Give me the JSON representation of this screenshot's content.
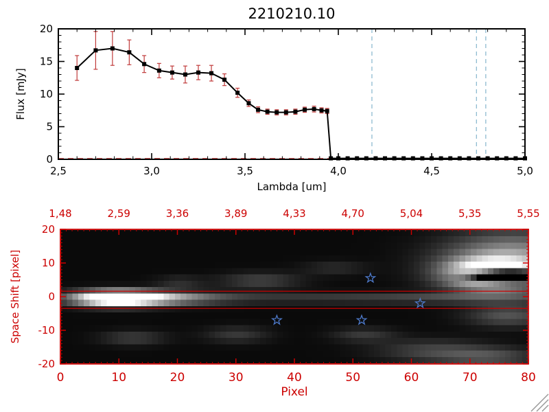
{
  "title": "2210210.10",
  "chart_data": [
    {
      "type": "line",
      "title": "2210210.10",
      "xlabel": "Lambda [um]",
      "ylabel": "Flux [mJy]",
      "xlim": [
        2.5,
        5.0
      ],
      "ylim": [
        0,
        20
      ],
      "xtick_values": [
        2.5,
        3.0,
        3.5,
        4.0,
        4.5,
        5.0
      ],
      "xtick_labels": [
        "2,5",
        "3,0",
        "3,5",
        "4,0",
        "4,5",
        "5,0"
      ],
      "ytick_values": [
        0,
        5,
        10,
        15,
        20
      ],
      "ytick_labels": [
        "0",
        "5",
        "10",
        "15",
        "20"
      ],
      "grid": false,
      "legend": false,
      "line_color": "#000000",
      "marker": "filled-square",
      "error_color": "#c03a3a",
      "series": [
        {
          "name": "spectrum",
          "x": [
            2.6,
            2.7,
            2.79,
            2.88,
            2.96,
            3.04,
            3.11,
            3.18,
            3.25,
            3.32,
            3.39,
            3.46,
            3.52,
            3.57,
            3.62,
            3.67,
            3.72,
            3.77,
            3.82,
            3.87,
            3.91,
            3.94,
            3.96,
            4.0,
            4.05,
            4.1,
            4.15,
            4.2,
            4.25,
            4.3,
            4.35,
            4.4,
            4.45,
            4.5,
            4.55,
            4.6,
            4.65,
            4.7,
            4.75,
            4.8,
            4.85,
            4.9,
            4.95,
            5.0
          ],
          "y": [
            14.0,
            16.7,
            17.0,
            16.4,
            14.6,
            13.6,
            13.3,
            13.0,
            13.3,
            13.2,
            12.2,
            10.2,
            8.6,
            7.6,
            7.3,
            7.2,
            7.2,
            7.3,
            7.6,
            7.7,
            7.5,
            7.4,
            0.15,
            0.15,
            0.15,
            0.15,
            0.15,
            0.15,
            0.15,
            0.15,
            0.15,
            0.15,
            0.15,
            0.15,
            0.15,
            0.15,
            0.15,
            0.15,
            0.15,
            0.15,
            0.15,
            0.15,
            0.15,
            0.15
          ],
          "yerr": [
            1.9,
            2.9,
            2.6,
            1.9,
            1.3,
            1.1,
            1.0,
            1.3,
            1.1,
            1.2,
            0.9,
            0.7,
            0.5,
            0.45,
            0.4,
            0.4,
            0.4,
            0.4,
            0.4,
            0.45,
            0.4,
            0.4,
            0,
            0,
            0,
            0,
            0,
            0,
            0,
            0,
            0,
            0,
            0,
            0,
            0,
            0,
            0,
            0,
            0,
            0,
            0,
            0,
            0,
            0
          ]
        }
      ],
      "vlines": {
        "x": [
          4.18,
          4.74,
          4.79
        ],
        "color": "#79aec8",
        "style": "dashed"
      },
      "hlines": {
        "y": [
          0.1
        ],
        "color": "#cc0000",
        "style": "dashed"
      }
    },
    {
      "type": "heatmap",
      "xlabel": "Pixel",
      "ylabel": "Space Shift [pixel]",
      "xlim": [
        0,
        80
      ],
      "ylim": [
        -20,
        20
      ],
      "xtick_values": [
        0,
        10,
        20,
        30,
        40,
        50,
        60,
        70,
        80
      ],
      "xtick_labels": [
        "0",
        "10",
        "20",
        "30",
        "40",
        "50",
        "60",
        "70",
        "80"
      ],
      "ytick_values": [
        -20,
        -10,
        0,
        10,
        20
      ],
      "ytick_labels": [
        "-20",
        "-10",
        "0",
        "10",
        "20"
      ],
      "top_axis_labels": [
        "1,48",
        "2,59",
        "3,36",
        "3,89",
        "4,33",
        "4,70",
        "5,04",
        "5,35",
        "5,55"
      ],
      "axis_color": "#cc0000",
      "colormap": "grayscale",
      "background_level": 0.04,
      "aperture_lines_y": [
        1.6,
        -3.5
      ],
      "star_color": "#4d79c9",
      "stars": [
        {
          "x": 37,
          "y": -7
        },
        {
          "x": 51.5,
          "y": -7
        },
        {
          "x": 53,
          "y": 5.5
        },
        {
          "x": 61.5,
          "y": -2
        }
      ],
      "blobs": [
        {
          "cx": 9,
          "cy": -0.5,
          "rx": 5,
          "ry": 1.6,
          "a": 1.3
        },
        {
          "cx": 17,
          "cy": -0.5,
          "rx": 7,
          "ry": 1.4,
          "a": 0.5
        },
        {
          "cx": 45,
          "cy": -0.5,
          "rx": 28,
          "ry": 1.2,
          "a": 0.18
        },
        {
          "cx": 70,
          "cy": -0.5,
          "rx": 12,
          "ry": 1.1,
          "a": 0.12
        },
        {
          "cx": 74,
          "cy": 7,
          "rx": 5,
          "ry": 3.0,
          "a": 1.2
        },
        {
          "cx": 77,
          "cy": 9,
          "rx": 8,
          "ry": 5.0,
          "a": 0.45
        },
        {
          "cx": 78,
          "cy": 15,
          "rx": 8,
          "ry": 5.0,
          "a": 0.3
        },
        {
          "cx": 76,
          "cy": 6.5,
          "rx": 4,
          "ry": 1.4,
          "a": -2.5
        },
        {
          "cx": 34,
          "cy": 5,
          "rx": 5,
          "ry": 1.8,
          "a": 0.22
        },
        {
          "cx": 20,
          "cy": 4.5,
          "rx": 3,
          "ry": 1.3,
          "a": 0.15
        },
        {
          "cx": 12,
          "cy": -13,
          "rx": 4,
          "ry": 1.6,
          "a": 0.2
        },
        {
          "cx": 30,
          "cy": -12,
          "rx": 4,
          "ry": 1.8,
          "a": 0.18
        },
        {
          "cx": 52,
          "cy": -12,
          "rx": 4,
          "ry": 1.6,
          "a": 0.18
        },
        {
          "cx": 64,
          "cy": -17,
          "rx": 7,
          "ry": 2.5,
          "a": 0.22
        },
        {
          "cx": 77,
          "cy": -6,
          "rx": 5,
          "ry": 2.5,
          "a": 0.28
        },
        {
          "cx": 74,
          "cy": -19,
          "rx": 6,
          "ry": 2.0,
          "a": 0.25
        },
        {
          "cx": 47,
          "cy": 9,
          "rx": 4,
          "ry": 1.5,
          "a": 0.13
        }
      ]
    }
  ],
  "resize_grip": {
    "line_count": 3,
    "color": "#999999"
  }
}
